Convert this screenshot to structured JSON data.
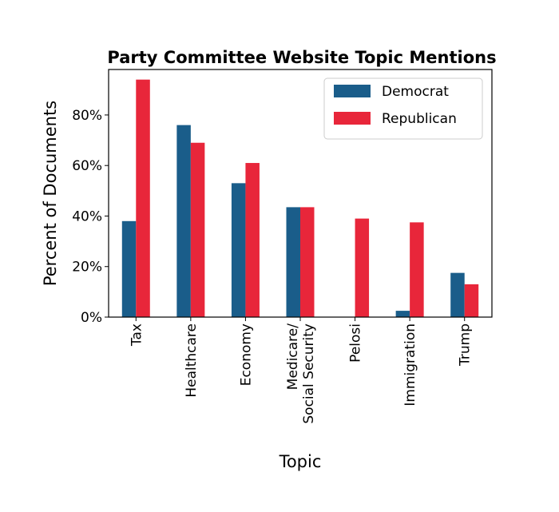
{
  "chart_data": {
    "type": "bar",
    "title": "Party Committee Website Topic Mentions",
    "xlabel": "Topic",
    "ylabel": "Percent of Documents",
    "categories": [
      [
        "Tax"
      ],
      [
        "Healthcare"
      ],
      [
        "Economy"
      ],
      [
        "Medicare/",
        "Social Security"
      ],
      [
        "Pelosi"
      ],
      [
        "Immigration"
      ],
      [
        "Trump"
      ]
    ],
    "series": [
      {
        "name": "Democrat",
        "color": "#1a5d8a",
        "values": [
          38,
          76,
          53,
          43.5,
          0,
          2.5,
          17.5
        ]
      },
      {
        "name": "Republican",
        "color": "#e8263a",
        "values": [
          94,
          69,
          61,
          43.5,
          39,
          37.5,
          13
        ]
      }
    ],
    "ylim": [
      0,
      98
    ],
    "yticks": [
      0,
      20,
      40,
      60,
      80
    ],
    "ytick_labels": [
      "0%",
      "20%",
      "40%",
      "60%",
      "80%"
    ],
    "grid": false,
    "legend_position": "top-right"
  }
}
